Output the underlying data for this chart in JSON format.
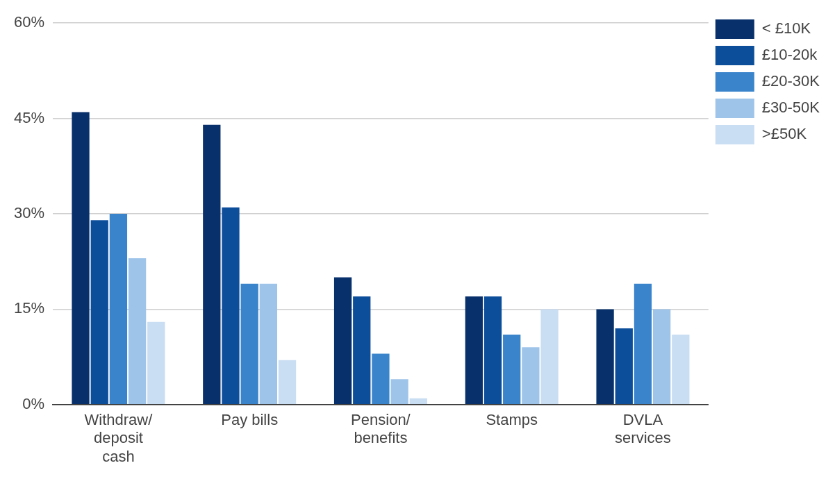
{
  "chart_data": {
    "type": "bar",
    "categories": [
      "Withdraw/ deposit cash",
      "Pay bills",
      "Pension/ benefits",
      "Stamps",
      "DVLA services"
    ],
    "series": [
      {
        "name": "< £10K",
        "color": "#08306b",
        "values": [
          46,
          44,
          20,
          17,
          15
        ]
      },
      {
        "name": "£10-20k",
        "color": "#0d4e9b",
        "values": [
          29,
          31,
          17,
          17,
          12
        ]
      },
      {
        "name": "£20-30K",
        "color": "#3a84cc",
        "values": [
          30,
          19,
          8,
          11,
          19
        ]
      },
      {
        "name": "£30-50K",
        "color": "#9ec4ea",
        "values": [
          23,
          19,
          4,
          9,
          15
        ]
      },
      {
        "name": ">£50K",
        "color": "#c9ddf3",
        "values": [
          13,
          7,
          1,
          15,
          11
        ]
      }
    ],
    "ylim": [
      0,
      60
    ],
    "yticks": [
      {
        "value": 0,
        "label": "0%"
      },
      {
        "value": 15,
        "label": "15%"
      },
      {
        "value": 30,
        "label": "30%"
      },
      {
        "value": 45,
        "label": "45%"
      },
      {
        "value": 60,
        "label": "60%"
      }
    ],
    "grid": "y",
    "legend": "top right"
  }
}
